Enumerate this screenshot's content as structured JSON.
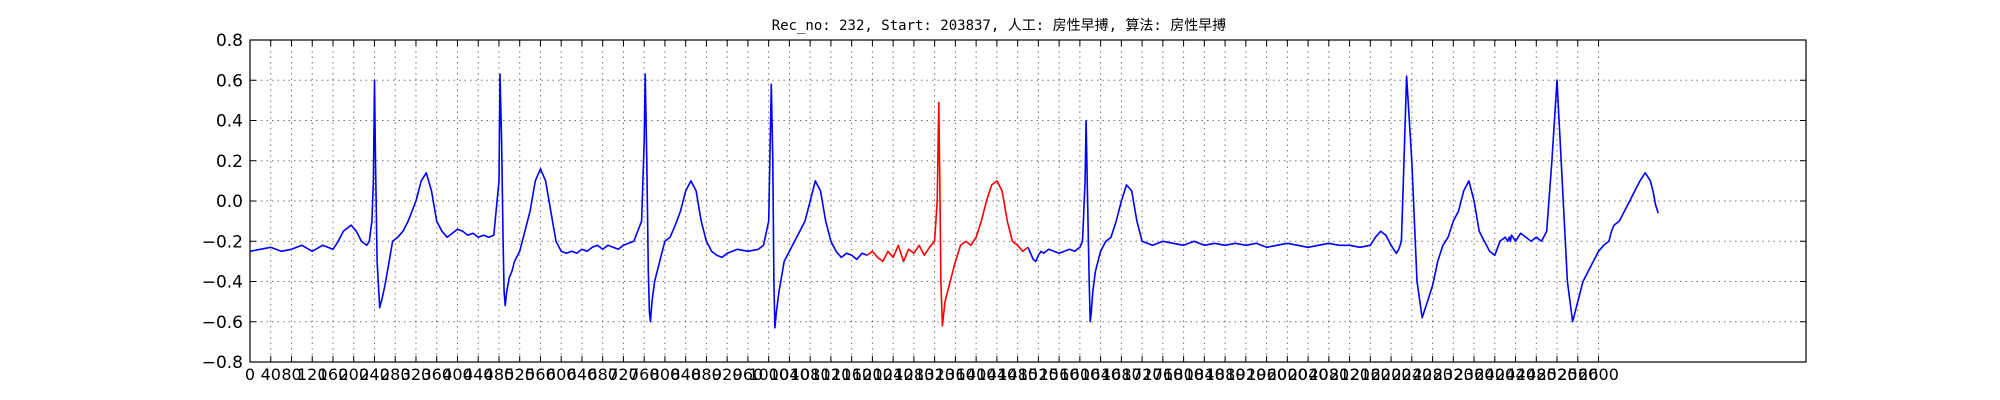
{
  "chart_data": {
    "type": "line",
    "title": "Rec_no: 232, Start: 203837, 人工: 房性早搏, 算法: 房性早搏",
    "xlabel": "",
    "ylabel": "",
    "xlim": [
      0,
      3000
    ],
    "ylim": [
      -0.8,
      0.8
    ],
    "grid": true,
    "y_ticks": [
      -0.8,
      -0.6,
      -0.4,
      -0.2,
      0.0,
      0.2,
      0.4,
      0.6,
      0.8
    ],
    "y_tick_labels": [
      "−0.8",
      "−0.6",
      "−0.4",
      "−0.2",
      "0.0",
      "0.2",
      "0.4",
      "0.6",
      "0.8"
    ],
    "x_ticks": [
      0,
      40,
      80,
      120,
      160,
      200,
      240,
      280,
      320,
      360,
      400,
      440,
      480,
      520,
      560,
      600,
      640,
      680,
      720,
      760,
      800,
      840,
      880,
      920,
      960,
      1000,
      1040,
      1080,
      1120,
      1160,
      1200,
      1240,
      1280,
      1320,
      1360,
      1400,
      1440,
      1480,
      1520,
      1560,
      1600,
      1640,
      1680,
      1720,
      1760,
      1800,
      1840,
      1880,
      1920,
      1960,
      2000,
      2040,
      2080,
      2120,
      2160,
      2200,
      2240,
      2280,
      2320,
      2360,
      2400,
      2440,
      2480,
      2520,
      2560,
      2600
    ],
    "x_tick_labels": [
      "0",
      "40",
      "80",
      "120",
      "160",
      "200",
      "240",
      "280",
      "320",
      "360",
      "400",
      "440",
      "480",
      "520",
      "560",
      "600",
      "640",
      "680",
      "720",
      "760",
      "800",
      "840",
      "880",
      "920",
      "960",
      "1000",
      "1040",
      "1080",
      "1120",
      "1160",
      "1200",
      "1240",
      "1280",
      "1320",
      "1360",
      "1400",
      "1440",
      "1480",
      "1520",
      "1560",
      "1600",
      "1640",
      "1680",
      "1720",
      "1760",
      "1800",
      "1840",
      "1880",
      "1920",
      "1960",
      "2000",
      "2040",
      "2080",
      "2120",
      "2160",
      "2200",
      "2240",
      "2280",
      "2320",
      "2360",
      "2400",
      "2440",
      "2480",
      "2520",
      "2560",
      "2600"
    ],
    "series": [
      {
        "color": "#0000ff",
        "segments": [
          {
            "x": [
              0,
              20,
              40,
              60,
              80,
              100,
              120,
              140,
              160,
              170,
              180,
              195,
              205,
              215,
              225,
              230,
              235,
              238,
              240,
              242,
              245,
              250,
              255,
              260,
              265,
              275,
              285,
              295,
              305,
              320,
              330,
              340,
              350,
              360,
              370,
              380,
              390,
              400,
              410,
              420,
              430,
              440,
              450,
              460,
              470,
              480,
              482,
              485,
              488,
              490,
              492,
              495,
              500,
              505,
              510,
              520,
              530,
              540,
              550,
              560,
              570,
              580,
              590,
              600,
              610,
              620,
              630,
              640,
              650,
              660,
              670,
              680,
              690,
              700,
              710,
              720,
              740,
              755,
              760,
              762,
              765,
              768,
              770,
              772,
              775,
              780,
              790,
              800,
              810,
              820,
              830,
              840,
              850,
              860,
              870,
              880,
              890,
              900,
              910,
              920,
              930,
              940,
              960,
              980,
              990,
              1000,
              1005,
              1008,
              1010,
              1012,
              1015,
              1020,
              1030,
              1040,
              1050,
              1060,
              1070,
              1080,
              1090,
              1100,
              1110,
              1120,
              1130,
              1140,
              1150,
              1160,
              1170,
              1180,
              1190
            ],
            "y": [
              -0.25,
              -0.24,
              -0.23,
              -0.25,
              -0.24,
              -0.22,
              -0.25,
              -0.22,
              -0.24,
              -0.2,
              -0.15,
              -0.12,
              -0.15,
              -0.2,
              -0.22,
              -0.2,
              -0.1,
              0.1,
              0.6,
              0.2,
              -0.3,
              -0.53,
              -0.48,
              -0.42,
              -0.35,
              -0.2,
              -0.18,
              -0.15,
              -0.1,
              0.0,
              0.1,
              0.14,
              0.05,
              -0.1,
              -0.15,
              -0.18,
              -0.16,
              -0.14,
              -0.15,
              -0.17,
              -0.16,
              -0.18,
              -0.17,
              -0.18,
              -0.17,
              0.1,
              0.63,
              0.3,
              -0.2,
              -0.45,
              -0.52,
              -0.45,
              -0.38,
              -0.35,
              -0.3,
              -0.25,
              -0.15,
              -0.05,
              0.1,
              0.16,
              0.1,
              -0.05,
              -0.2,
              -0.25,
              -0.26,
              -0.25,
              -0.26,
              -0.24,
              -0.25,
              -0.23,
              -0.22,
              -0.24,
              -0.22,
              -0.23,
              -0.24,
              -0.22,
              -0.2,
              -0.1,
              0.3,
              0.63,
              0.2,
              -0.35,
              -0.55,
              -0.6,
              -0.5,
              -0.4,
              -0.3,
              -0.2,
              -0.18,
              -0.12,
              -0.05,
              0.05,
              0.1,
              0.05,
              -0.1,
              -0.2,
              -0.25,
              -0.27,
              -0.28,
              -0.26,
              -0.25,
              -0.24,
              -0.25,
              -0.24,
              -0.22,
              -0.1,
              0.58,
              0.2,
              -0.4,
              -0.63,
              -0.55,
              -0.45,
              -0.3,
              -0.25,
              -0.2,
              -0.15,
              -0.1,
              0.0,
              0.1,
              0.05,
              -0.1,
              -0.2,
              -0.25,
              -0.28,
              -0.26,
              -0.27,
              -0.29,
              -0.26,
              -0.27
            ]
          },
          {
            "x": [
              1500,
              1505,
              1510,
              1515,
              1520,
              1525,
              1530,
              1540,
              1550,
              1560,
              1570,
              1580,
              1590,
              1600,
              1605,
              1610,
              1612,
              1615,
              1618,
              1620,
              1622,
              1625,
              1630,
              1640,
              1650,
              1660,
              1670,
              1680,
              1690,
              1700,
              1710,
              1720,
              1740,
              1760,
              1780,
              1800,
              1820,
              1840,
              1860,
              1880,
              1900,
              1920,
              1940,
              1960,
              1980,
              2000,
              2020,
              2040,
              2060,
              2080,
              2100,
              2120,
              2140,
              2160,
              2170,
              2180,
              2190,
              2200,
              2205,
              2210,
              2215,
              2220,
              2225,
              2230,
              2240,
              2250,
              2260,
              2270,
              2280,
              2290,
              2300,
              2310,
              2320,
              2330,
              2340,
              2350,
              2360,
              2370,
              2380,
              2390,
              2400,
              2410,
              2420,
              2425,
              2428,
              2430,
              2432,
              2435,
              2440,
              2445,
              2450,
              2460,
              2470,
              2480,
              2490,
              2500,
              2510,
              2520,
              2530,
              2540,
              2550,
              2560,
              2570,
              2580,
              2590,
              2600,
              2610,
              2620,
              2625
            ],
            "y": [
              -0.23,
              -0.26,
              -0.29,
              -0.3,
              -0.27,
              -0.25,
              -0.26,
              -0.24,
              -0.25,
              -0.26,
              -0.25,
              -0.24,
              -0.25,
              -0.23,
              -0.2,
              0.1,
              0.4,
              0.0,
              -0.4,
              -0.6,
              -0.55,
              -0.45,
              -0.35,
              -0.25,
              -0.2,
              -0.18,
              -0.1,
              0.0,
              0.08,
              0.05,
              -0.1,
              -0.2,
              -0.22,
              -0.2,
              -0.21,
              -0.22,
              -0.2,
              -0.22,
              -0.21,
              -0.22,
              -0.21,
              -0.22,
              -0.21,
              -0.23,
              -0.22,
              -0.21,
              -0.22,
              -0.23,
              -0.22,
              -0.21,
              -0.22,
              -0.22,
              -0.23,
              -0.22,
              -0.18,
              -0.15,
              -0.17,
              -0.22,
              -0.24,
              -0.26,
              -0.24,
              -0.2,
              0.2,
              0.62,
              0.2,
              -0.4,
              -0.58,
              -0.5,
              -0.42,
              -0.3,
              -0.22,
              -0.18,
              -0.1,
              -0.05,
              0.05,
              0.1,
              0.0,
              -0.15,
              -0.2,
              -0.25,
              -0.27,
              -0.2,
              -0.18,
              -0.2,
              -0.18,
              -0.2,
              -0.17,
              -0.18,
              -0.2,
              -0.18,
              -0.16,
              -0.18,
              -0.2,
              -0.18,
              -0.2,
              -0.15,
              0.2,
              0.6,
              0.1,
              -0.4,
              -0.6,
              -0.5,
              -0.4,
              -0.35,
              -0.3,
              -0.25,
              -0.22,
              -0.2,
              -0.15
            ]
          },
          {
            "x": [
              2625,
              2630,
              2640,
              2650,
              2660,
              2670,
              2680,
              2690,
              2695,
              2700,
              2705,
              2710,
              2715
            ],
            "y": [
              -0.15,
              -0.12,
              -0.1,
              -0.05,
              0.0,
              0.05,
              0.1,
              0.14,
              0.12,
              0.1,
              0.05,
              -0.02,
              -0.06
            ]
          }
        ]
      },
      {
        "color": "#ff0000",
        "segments": [
          {
            "x": [
              1190,
              1200,
              1210,
              1220,
              1230,
              1240,
              1250,
              1260,
              1270,
              1280,
              1290,
              1300,
              1310,
              1320,
              1325,
              1328,
              1330,
              1332,
              1335,
              1340,
              1345,
              1350,
              1360,
              1370,
              1380,
              1390,
              1400,
              1410,
              1420,
              1430,
              1440,
              1450,
              1460,
              1470,
              1480,
              1490,
              1500
            ],
            "y": [
              -0.27,
              -0.25,
              -0.28,
              -0.3,
              -0.25,
              -0.28,
              -0.22,
              -0.3,
              -0.24,
              -0.26,
              -0.22,
              -0.27,
              -0.23,
              -0.2,
              0.0,
              0.49,
              0.1,
              -0.4,
              -0.62,
              -0.5,
              -0.45,
              -0.4,
              -0.3,
              -0.22,
              -0.2,
              -0.22,
              -0.18,
              -0.1,
              0.0,
              0.08,
              0.1,
              0.05,
              -0.1,
              -0.2,
              -0.22,
              -0.25,
              -0.23
            ]
          }
        ]
      }
    ]
  }
}
